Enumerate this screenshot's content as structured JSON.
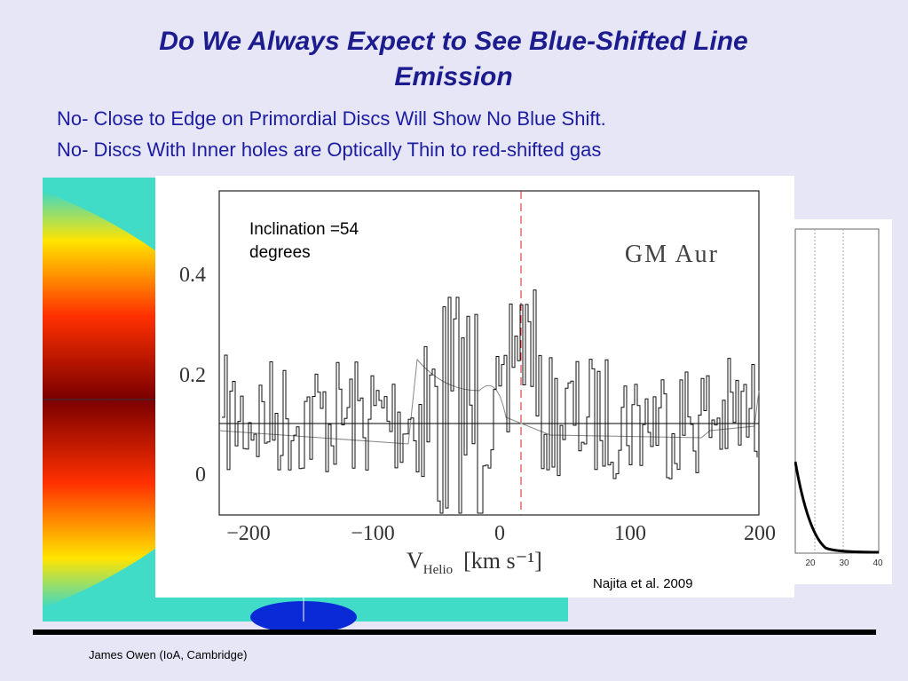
{
  "slide": {
    "title": "Do We Always Expect to See Blue-Shifted Line Emission",
    "bullets": [
      "No- Close to Edge on Primordial Discs Will Show No Blue Shift.",
      "No- Discs With Inner holes are Optically Thin to red-shifted gas"
    ],
    "figure": {
      "annotation": "Inclination =54 degrees",
      "object": "GM Aur",
      "x_label": "V",
      "x_label_sub": "Helio",
      "x_label_unit": "[km s⁻¹]",
      "x_ticks": [
        "−200",
        "−100",
        "0",
        "100",
        "200"
      ],
      "y_ticks": [
        "0",
        "0.2",
        "0.4"
      ],
      "credit": "Najita et al. 2009"
    },
    "side_panel": {
      "x_ticks": [
        "20",
        "30",
        "40"
      ]
    },
    "footer": "James Owen (IoA, Cambridge)"
  }
}
